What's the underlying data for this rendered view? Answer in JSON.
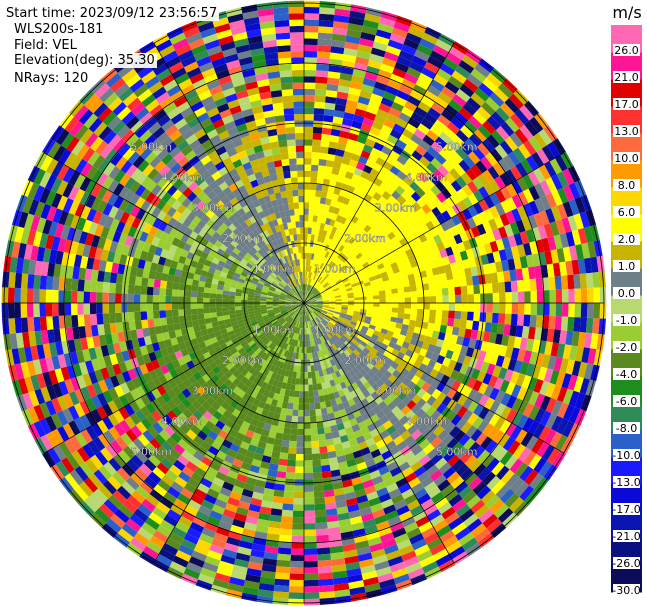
{
  "header": {
    "start_time": "Start time: 2023/09/12 23:56:57",
    "instrument": "WLS200s-181",
    "field": "Field: VEL",
    "elevation": "Elevation(deg): 35.30",
    "nrays": "NRays: 120"
  },
  "chart_data": {
    "type": "ppi",
    "field": "VEL",
    "units": "m/s",
    "nrays": 120,
    "range_rings_km": [
      1,
      2,
      3,
      4,
      5
    ],
    "range_ring_labels": [
      "1.00km",
      "2.00km",
      "3.00km",
      "4.00km",
      "5.00km"
    ],
    "max_range_km": 5.0,
    "spokes_deg": [
      0,
      30,
      60,
      90,
      120,
      150,
      180,
      210,
      240,
      270,
      300,
      330
    ],
    "colorbar": {
      "levels": [
        -30.0,
        -26.0,
        -21.0,
        -17.0,
        -13.0,
        -10.0,
        -8.0,
        -6.0,
        -4.0,
        -2.0,
        -1.0,
        0.0,
        1.0,
        2.0,
        6.0,
        8.0,
        10.0,
        13.0,
        17.0,
        21.0,
        26.0
      ],
      "labels": [
        "-30.0",
        "-26.0",
        "-21.0",
        "-17.0",
        "-13.0",
        "-10.0",
        "-8.0",
        "-6.0",
        "-4.0",
        "-2.0",
        "-1.0",
        "0.0",
        "1.0",
        "2.0",
        "6.0",
        "8.0",
        "10.0",
        "13.0",
        "17.0",
        "21.0",
        "26.0"
      ],
      "colors": [
        "#0b0b5a",
        "#0b1080",
        "#0a14b0",
        "#0a0ad8",
        "#1a1aff",
        "#2a60c8",
        "#2e8b57",
        "#1e8c1e",
        "#5a8a1e",
        "#9acd32",
        "#b8d870",
        "#6e7f8a",
        "#c8b400",
        "#ffff00",
        "#ffd700",
        "#ff9a00",
        "#ff6a3c",
        "#ff3030",
        "#e00000",
        "#ff1493",
        "#ff69b4"
      ]
    },
    "pattern_summary": "Near-field mostly positive (yellow 1-6 m/s) toward north and east, negative (green -1 to -4 m/s) toward south-west, grey near-zero patches; outer ranges noisy."
  }
}
